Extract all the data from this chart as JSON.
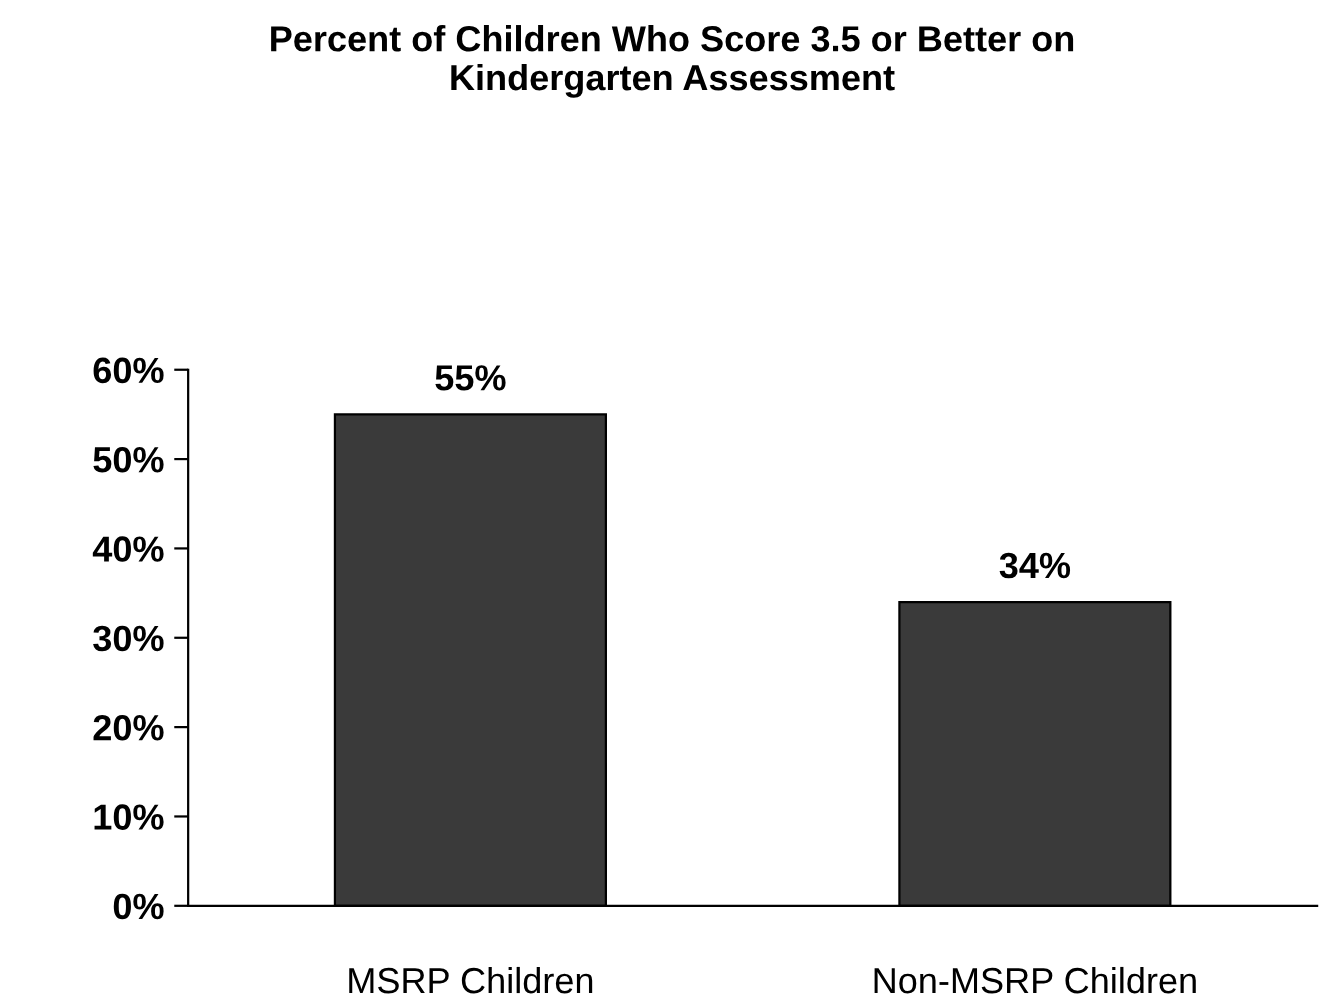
{
  "chart_data": {
    "type": "bar",
    "title": "Percent of Children Who Score 3.5 or Better on\nKindergarten Assessment",
    "categories": [
      "MSRP Children",
      "Non-MSRP Children"
    ],
    "values": [
      55,
      34
    ],
    "color": "#3a3a3a",
    "value_labels": [
      "55%",
      "34%"
    ],
    "ylim": [
      0,
      60
    ],
    "yticks": [
      {
        "value": 0,
        "label": "0%"
      },
      {
        "value": 10,
        "label": "10%"
      },
      {
        "value": 20,
        "label": "20%"
      },
      {
        "value": 30,
        "label": "30%"
      },
      {
        "value": 40,
        "label": "40%"
      },
      {
        "value": 50,
        "label": "50%"
      },
      {
        "value": 60,
        "label": "60%"
      }
    ],
    "grid": false,
    "legend": false
  }
}
